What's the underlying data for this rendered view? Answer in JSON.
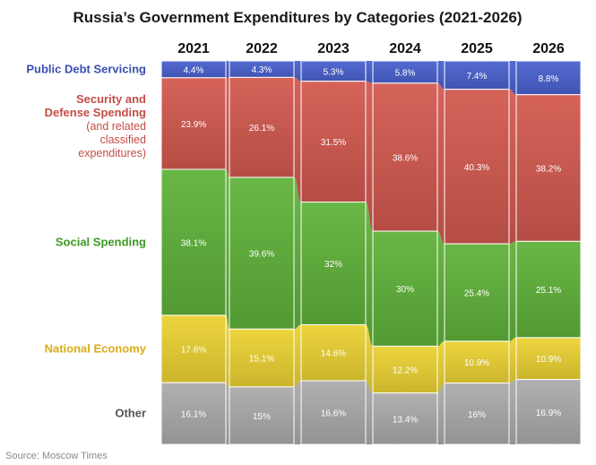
{
  "chart_data": {
    "type": "bar",
    "stacked": true,
    "normalized": true,
    "title": "Russia’s Government Expenditures by Categories (2021-2026)",
    "categories": [
      "2021",
      "2022",
      "2023",
      "2024",
      "2025",
      "2026"
    ],
    "ylim": [
      0,
      100
    ],
    "unit": "%",
    "series": [
      {
        "name": "Public Debt Servicing",
        "label_lines": [
          "Public Debt Servicing"
        ],
        "note_lines": [],
        "values": [
          4.4,
          4.3,
          5.3,
          5.8,
          7.4,
          8.8
        ],
        "labels": [
          "4.4%",
          "4.3%",
          "5.3%",
          "5.8%",
          "7.4%",
          "8.8%"
        ],
        "color": "#4a62cf",
        "name_color": "#3a4fb0",
        "value_color": "#ffffff"
      },
      {
        "name": "Security and Defense Spending",
        "label_lines": [
          "Security and",
          "Defense Spending"
        ],
        "note_lines": [
          "(and related",
          "classified",
          "expenditures)"
        ],
        "values": [
          23.9,
          26.1,
          31.5,
          38.6,
          40.3,
          38.2
        ],
        "labels": [
          "23.9%",
          "26.1%",
          "31.5%",
          "38.6%",
          "40.3%",
          "38.2%"
        ],
        "color": "#d2594f",
        "name_color": "#c44d45",
        "value_color": "#ffffff"
      },
      {
        "name": "Social Spending",
        "label_lines": [
          "Social Spending"
        ],
        "note_lines": [],
        "values": [
          38.1,
          39.6,
          32,
          30,
          25.4,
          25.1
        ],
        "labels": [
          "38.1%",
          "39.6%",
          "32%",
          "30%",
          "25.4%",
          "25.1%"
        ],
        "color": "#5fb23a",
        "name_color": "#3f9a25",
        "value_color": "#ffffff"
      },
      {
        "name": "National Economy",
        "label_lines": [
          "National Economy"
        ],
        "note_lines": [],
        "values": [
          17.6,
          15.1,
          14.6,
          12.2,
          10.9,
          10.9
        ],
        "labels": [
          "17.6%",
          "15.1%",
          "14.6%",
          "12.2%",
          "10.9%",
          "10.9%"
        ],
        "color": "#ecd233",
        "name_color": "#d9ad1a",
        "value_color": "#ffffff"
      },
      {
        "name": "Other",
        "label_lines": [
          "Other"
        ],
        "note_lines": [],
        "values": [
          16.1,
          15,
          16.6,
          13.4,
          16,
          16.9
        ],
        "labels": [
          "16.1%",
          "15%",
          "16.6%",
          "13.4%",
          "16%",
          "16.9%"
        ],
        "color": "#ababab",
        "name_color": "#555555",
        "value_color": "#ffffff"
      }
    ],
    "source": "Source: Moscow Times"
  }
}
